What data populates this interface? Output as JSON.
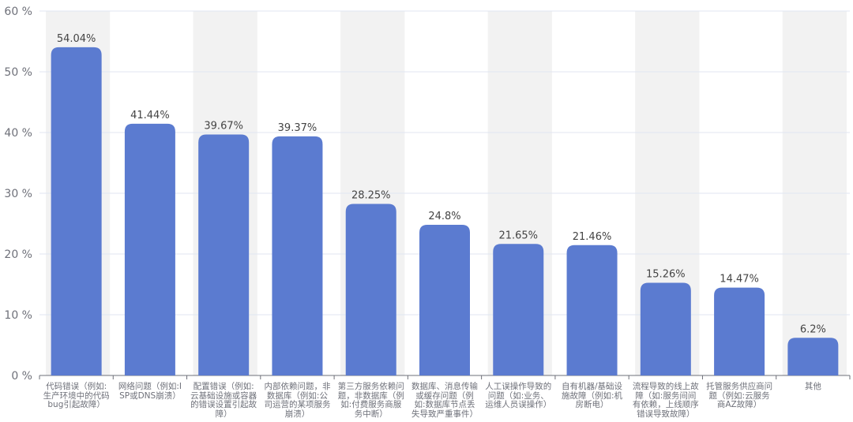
{
  "chart_data": {
    "type": "bar",
    "categories": [
      "代码错误（例如:生产环境中的代码bug引起故障）",
      "网络问题（例如:ISP或DNS崩溃）",
      "配置错误（例如:云基础设施或容器的错误设置引起故障）",
      "内部依赖问题，非数据库（例如:公司运营的某项服务崩溃）",
      "第三方服务依赖问题，非数据库（例如:付费服务商服务中断）",
      "数据库、消息传输或缓存问题（例如:数据库节点丢失导致严重事件）",
      "人工误操作导致的问题（如:业务、运维人员误操作）",
      "自有机器/基础设施故障（例如:机房断电）",
      "流程导致的线上故障（如:服务间间有依赖，上线顺序错误导致故障）",
      "托管服务供应商问题（例如:云服务商AZ故障）",
      "其他"
    ],
    "values": [
      54.04,
      41.44,
      39.67,
      39.37,
      28.25,
      24.8,
      21.65,
      21.46,
      15.26,
      14.47,
      6.2
    ],
    "value_labels": [
      "54.04%",
      "41.44%",
      "39.67%",
      "39.37%",
      "28.25%",
      "24.8%",
      "21.65%",
      "21.46%",
      "15.26%",
      "14.47%",
      "6.2%"
    ],
    "yticks": [
      "0 %",
      "10 %",
      "20 %",
      "30 %",
      "40 %",
      "50 %",
      "60 %"
    ],
    "ylim": [
      0,
      60
    ],
    "grid": true,
    "background_bands": true,
    "bar_color": "#5b7bd0",
    "band_color": "#f2f2f2",
    "title": "",
    "xlabel": "",
    "ylabel": ""
  }
}
